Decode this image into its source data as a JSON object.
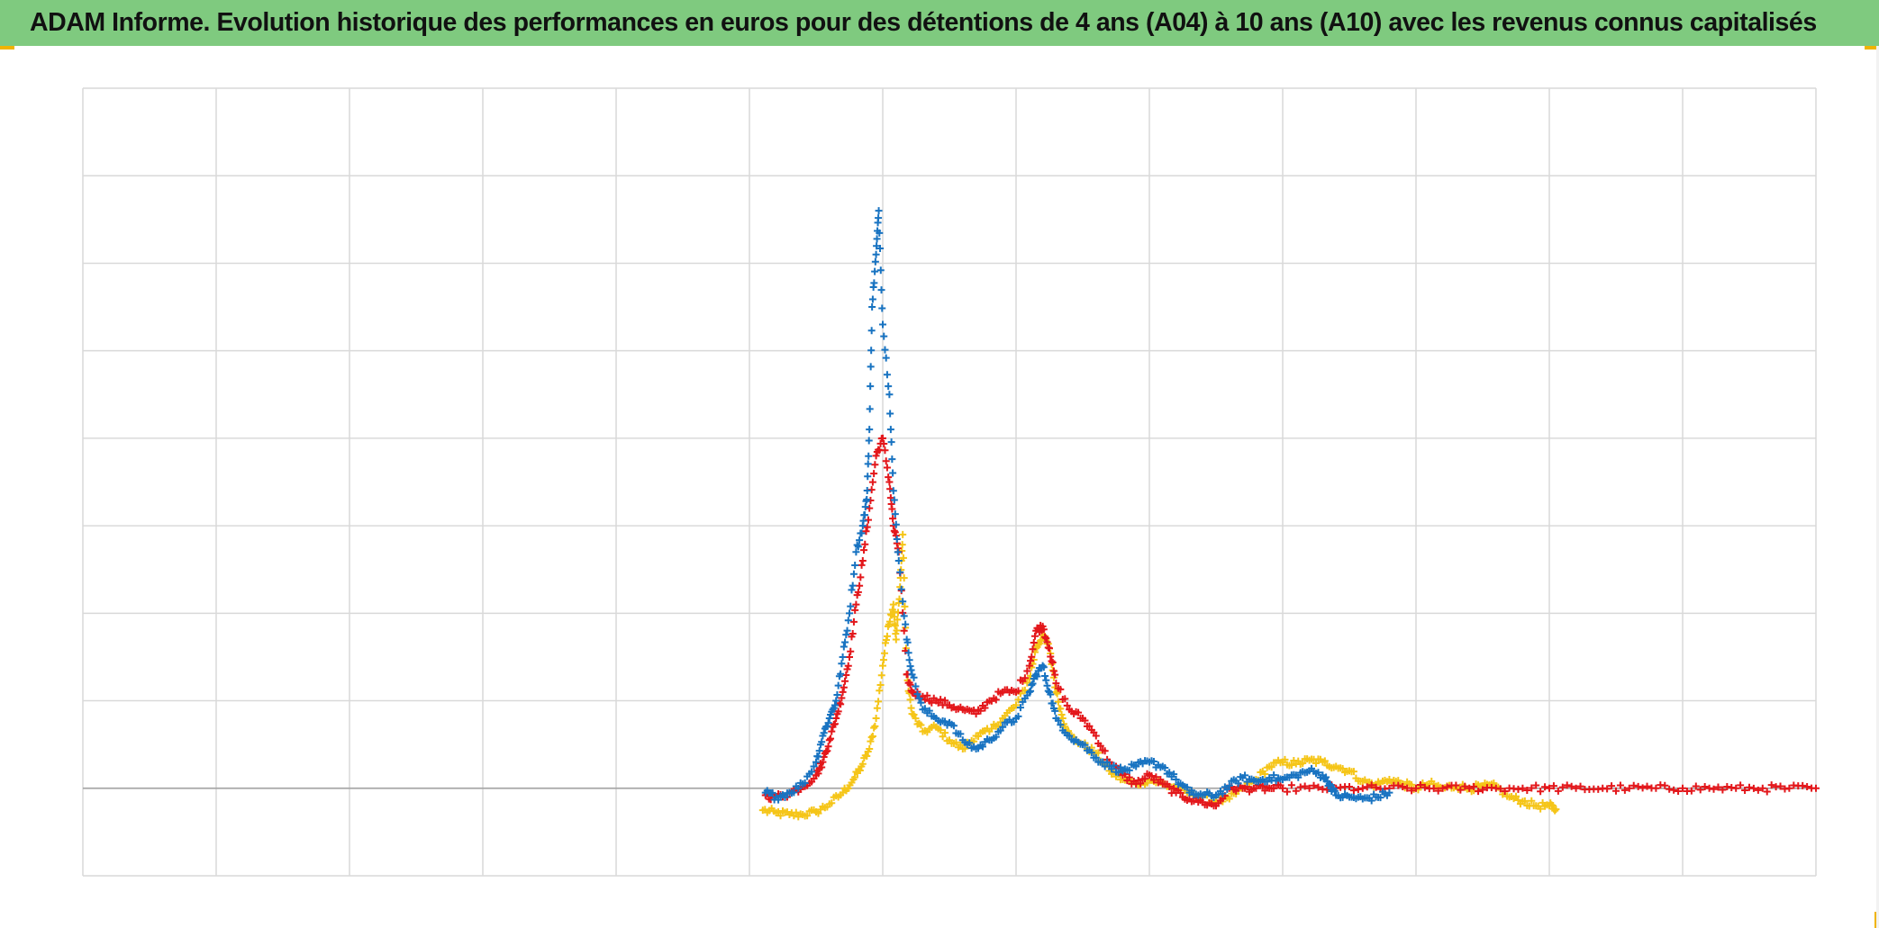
{
  "title": "ADAM Informe. Evolution historique des performances en euros pour des détentions de 4 ans (A04) à 10 ans (A10) avec les revenus connus capitalisés",
  "colors": {
    "title_background": "#7fca7f",
    "corner_marker": "#f0b400",
    "grid": "#d9d9d9",
    "baseline": "#a6a6a6"
  },
  "chart_data": {
    "type": "scatter",
    "marker": "plus",
    "title": "",
    "xlabel": "",
    "ylabel": "",
    "grid": true,
    "legend": "none",
    "tick_labels_shown": false,
    "x_range": [
      0,
      13
    ],
    "y_range": [
      -1,
      8
    ],
    "baseline_y": 0,
    "x_gridlines": [
      1,
      2,
      3,
      4,
      5,
      6,
      7,
      8,
      9,
      10,
      11,
      12,
      13
    ],
    "y_gridlines": [
      -1,
      1,
      2,
      3,
      4,
      5,
      6,
      7,
      8
    ],
    "series": [
      {
        "color": "#f5c518",
        "points": [
          [
            5.1,
            -0.25
          ],
          [
            5.2,
            -0.28
          ],
          [
            5.3,
            -0.3
          ],
          [
            5.4,
            -0.3
          ],
          [
            5.5,
            -0.27
          ],
          [
            5.6,
            -0.18
          ],
          [
            5.7,
            -0.05
          ],
          [
            5.78,
            0.1
          ],
          [
            5.84,
            0.25
          ],
          [
            5.9,
            0.45
          ],
          [
            5.95,
            0.8
          ],
          [
            6.0,
            1.4
          ],
          [
            6.04,
            1.85
          ],
          [
            6.08,
            2.1
          ],
          [
            6.1,
            1.7
          ],
          [
            6.13,
            2.3
          ],
          [
            6.15,
            2.9
          ],
          [
            6.18,
            1.3
          ],
          [
            6.22,
            0.85
          ],
          [
            6.3,
            0.65
          ],
          [
            6.4,
            0.7
          ],
          [
            6.5,
            0.55
          ],
          [
            6.6,
            0.45
          ],
          [
            6.7,
            0.6
          ],
          [
            6.8,
            0.65
          ],
          [
            6.9,
            0.8
          ],
          [
            7.0,
            0.95
          ],
          [
            7.1,
            1.25
          ],
          [
            7.15,
            1.6
          ],
          [
            7.2,
            1.75
          ],
          [
            7.25,
            1.6
          ],
          [
            7.3,
            1.1
          ],
          [
            7.35,
            0.8
          ],
          [
            7.4,
            0.6
          ],
          [
            7.5,
            0.5
          ],
          [
            7.6,
            0.4
          ],
          [
            7.7,
            0.2
          ],
          [
            7.8,
            0.1
          ],
          [
            7.9,
            0.05
          ],
          [
            8.0,
            0.1
          ],
          [
            8.1,
            0.05
          ],
          [
            8.2,
            0.0
          ],
          [
            8.3,
            -0.05
          ],
          [
            8.4,
            -0.1
          ],
          [
            8.5,
            -0.15
          ],
          [
            8.6,
            -0.12
          ],
          [
            8.7,
            0.0
          ],
          [
            8.8,
            0.1
          ],
          [
            8.9,
            0.25
          ],
          [
            9.0,
            0.3
          ],
          [
            9.1,
            0.28
          ],
          [
            9.2,
            0.32
          ],
          [
            9.3,
            0.3
          ],
          [
            9.4,
            0.25
          ],
          [
            9.5,
            0.2
          ],
          [
            9.6,
            0.08
          ],
          [
            9.7,
            0.04
          ],
          [
            9.8,
            0.1
          ],
          [
            9.9,
            0.05
          ],
          [
            10.0,
            0.0
          ],
          [
            10.1,
            0.05
          ],
          [
            10.2,
            0.0
          ],
          [
            10.3,
            0.03
          ],
          [
            10.4,
            0.0
          ],
          [
            10.5,
            0.02
          ],
          [
            10.6,
            0.02
          ],
          [
            10.7,
            -0.1
          ],
          [
            10.8,
            -0.15
          ],
          [
            10.9,
            -0.2
          ],
          [
            11.0,
            -0.2
          ],
          [
            11.05,
            -0.24
          ]
        ]
      },
      {
        "color": "#e3171b",
        "points": [
          [
            5.12,
            -0.08
          ],
          [
            5.2,
            -0.1
          ],
          [
            5.3,
            -0.06
          ],
          [
            5.4,
            0.02
          ],
          [
            5.5,
            0.15
          ],
          [
            5.55,
            0.3
          ],
          [
            5.6,
            0.55
          ],
          [
            5.65,
            0.8
          ],
          [
            5.7,
            1.1
          ],
          [
            5.75,
            1.5
          ],
          [
            5.8,
            2.1
          ],
          [
            5.85,
            2.6
          ],
          [
            5.9,
            3.2
          ],
          [
            5.95,
            3.8
          ],
          [
            6.0,
            4.0
          ],
          [
            6.05,
            3.5
          ],
          [
            6.08,
            3.0
          ],
          [
            6.12,
            2.7
          ],
          [
            6.18,
            1.3
          ],
          [
            6.22,
            1.1
          ],
          [
            6.3,
            1.05
          ],
          [
            6.4,
            1.0
          ],
          [
            6.5,
            0.95
          ],
          [
            6.6,
            0.9
          ],
          [
            6.7,
            0.85
          ],
          [
            6.8,
            1.0
          ],
          [
            6.9,
            1.1
          ],
          [
            7.0,
            1.1
          ],
          [
            7.1,
            1.4
          ],
          [
            7.15,
            1.8
          ],
          [
            7.2,
            1.85
          ],
          [
            7.25,
            1.6
          ],
          [
            7.3,
            1.2
          ],
          [
            7.4,
            0.9
          ],
          [
            7.5,
            0.8
          ],
          [
            7.6,
            0.6
          ],
          [
            7.7,
            0.3
          ],
          [
            7.8,
            0.15
          ],
          [
            7.9,
            0.05
          ],
          [
            8.0,
            0.15
          ],
          [
            8.1,
            0.05
          ],
          [
            8.2,
            -0.05
          ],
          [
            8.3,
            -0.12
          ],
          [
            8.4,
            -0.16
          ],
          [
            8.5,
            -0.2
          ],
          [
            8.6,
            0.0
          ],
          [
            8.7,
            0.0
          ],
          [
            8.8,
            0.0
          ],
          [
            8.9,
            0.0
          ],
          [
            9.0,
            0.0
          ],
          [
            9.2,
            0.0
          ],
          [
            9.4,
            0.0
          ],
          [
            9.6,
            0.0
          ],
          [
            9.8,
            0.0
          ],
          [
            10.0,
            0.0
          ],
          [
            10.2,
            0.0
          ],
          [
            10.4,
            0.0
          ],
          [
            10.6,
            0.0
          ],
          [
            10.8,
            0.0
          ],
          [
            11.0,
            0.0
          ],
          [
            11.2,
            0.0
          ],
          [
            11.4,
            0.0
          ],
          [
            11.6,
            0.0
          ],
          [
            11.8,
            0.0
          ],
          [
            12.0,
            0.0
          ],
          [
            12.2,
            0.0
          ],
          [
            12.4,
            0.0
          ],
          [
            12.6,
            0.0
          ],
          [
            12.8,
            0.0
          ],
          [
            13.0,
            0.0
          ]
        ]
      },
      {
        "color": "#1873c1",
        "points": [
          [
            5.12,
            -0.05
          ],
          [
            5.2,
            -0.1
          ],
          [
            5.3,
            -0.05
          ],
          [
            5.4,
            0.05
          ],
          [
            5.5,
            0.3
          ],
          [
            5.55,
            0.6
          ],
          [
            5.6,
            0.8
          ],
          [
            5.65,
            1.0
          ],
          [
            5.7,
            1.5
          ],
          [
            5.75,
            2.0
          ],
          [
            5.8,
            2.7
          ],
          [
            5.85,
            3.0
          ],
          [
            5.88,
            3.3
          ],
          [
            5.9,
            4.1
          ],
          [
            5.92,
            5.5
          ],
          [
            5.95,
            6.1
          ],
          [
            5.97,
            6.6
          ],
          [
            6.0,
            5.3
          ],
          [
            6.05,
            4.5
          ],
          [
            6.08,
            3.4
          ],
          [
            6.12,
            2.6
          ],
          [
            6.18,
            1.7
          ],
          [
            6.22,
            1.3
          ],
          [
            6.3,
            0.9
          ],
          [
            6.4,
            0.8
          ],
          [
            6.5,
            0.75
          ],
          [
            6.6,
            0.55
          ],
          [
            6.7,
            0.45
          ],
          [
            6.8,
            0.55
          ],
          [
            6.9,
            0.7
          ],
          [
            7.0,
            0.8
          ],
          [
            7.1,
            1.1
          ],
          [
            7.15,
            1.3
          ],
          [
            7.2,
            1.4
          ],
          [
            7.25,
            1.1
          ],
          [
            7.3,
            0.8
          ],
          [
            7.4,
            0.6
          ],
          [
            7.5,
            0.5
          ],
          [
            7.6,
            0.35
          ],
          [
            7.7,
            0.25
          ],
          [
            7.8,
            0.2
          ],
          [
            7.9,
            0.25
          ],
          [
            8.0,
            0.3
          ],
          [
            8.1,
            0.25
          ],
          [
            8.2,
            0.1
          ],
          [
            8.3,
            -0.05
          ],
          [
            8.4,
            -0.08
          ],
          [
            8.5,
            -0.08
          ],
          [
            8.6,
            0.03
          ],
          [
            8.7,
            0.12
          ],
          [
            8.8,
            0.08
          ],
          [
            8.9,
            0.12
          ],
          [
            9.0,
            0.1
          ],
          [
            9.1,
            0.15
          ],
          [
            9.2,
            0.2
          ],
          [
            9.3,
            0.15
          ],
          [
            9.35,
            0.05
          ],
          [
            9.4,
            -0.08
          ],
          [
            9.5,
            -0.1
          ],
          [
            9.6,
            -0.12
          ],
          [
            9.7,
            -0.1
          ],
          [
            9.8,
            -0.05
          ]
        ]
      }
    ]
  }
}
